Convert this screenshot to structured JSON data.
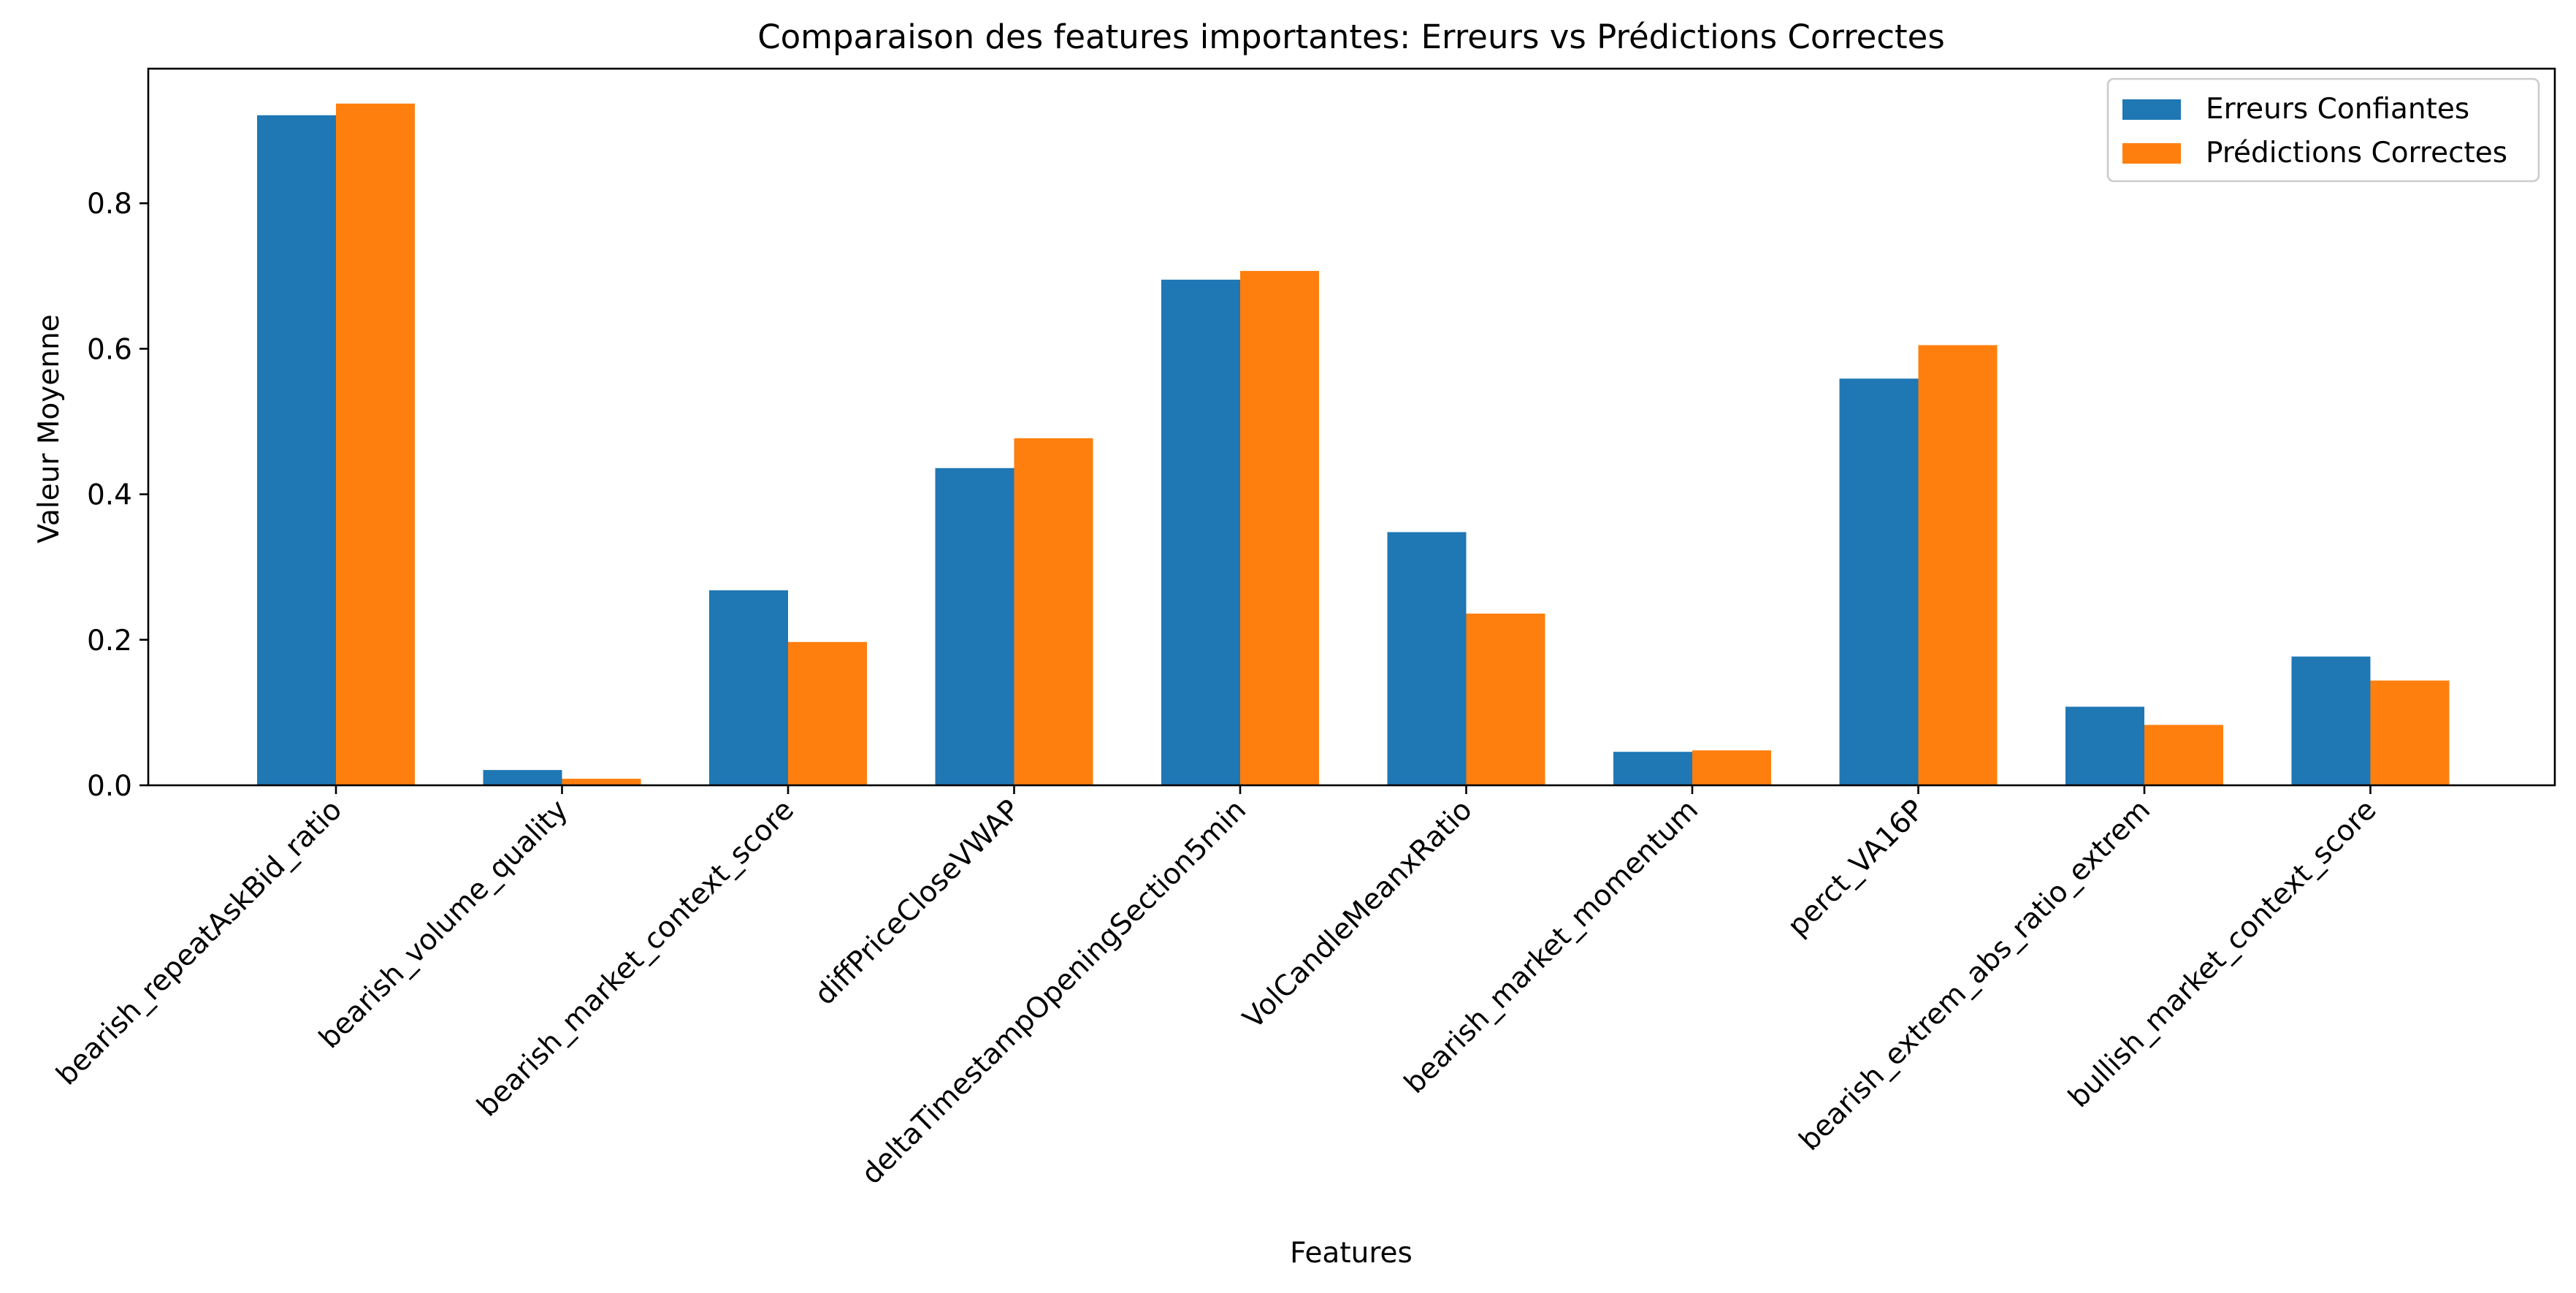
{
  "chart_data": {
    "type": "bar",
    "title": "Comparaison des features importantes: Erreurs vs Prédictions Correctes",
    "xlabel": "Features",
    "ylabel": "Valeur Moyenne",
    "categories": [
      "bearish_repeatAskBid_ratio",
      "bearish_volume_quality",
      "bearish_market_context_score",
      "diffPriceCloseVWAP",
      "deltaTimestampOpeningSection5min",
      "VolCandleMeanxRatio",
      "bearish_market_momentum",
      "perct_VA16P",
      "bearish_extrem_abs_ratio_extrem",
      "bullish_market_context_score"
    ],
    "series": [
      {
        "name": "Erreurs Confiantes",
        "color": "#1f77b4",
        "values": [
          0.921,
          0.021,
          0.268,
          0.436,
          0.695,
          0.348,
          0.046,
          0.559,
          0.108,
          0.177
        ]
      },
      {
        "name": "Prédictions Correctes",
        "color": "#ff7f0e",
        "values": [
          0.937,
          0.009,
          0.197,
          0.477,
          0.707,
          0.236,
          0.048,
          0.605,
          0.083,
          0.144
        ]
      }
    ],
    "ylim": [
      0,
      0.985
    ],
    "yticks": [
      0.0,
      0.2,
      0.4,
      0.6,
      0.8
    ],
    "ytick_labels": [
      "0.0",
      "0.2",
      "0.4",
      "0.6",
      "0.8"
    ],
    "grid": false,
    "legend_position": "top-right"
  }
}
